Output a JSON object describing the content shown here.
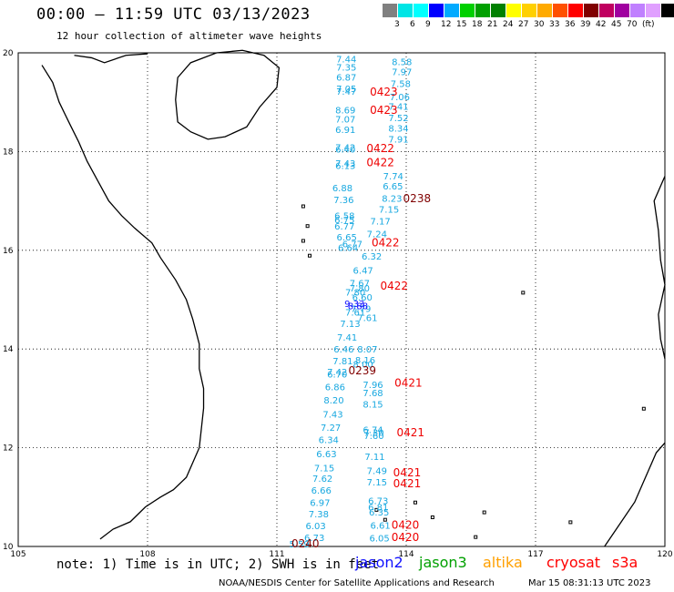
{
  "header": {
    "title": "00:00 – 11:59 UTC 03/13/2023",
    "subtitle": "12 hour collection of altimeter wave heights"
  },
  "colorbar": {
    "colors": [
      "#808080",
      "#00e5e5",
      "#00ffff",
      "#0000ff",
      "#00aaff",
      "#00d000",
      "#00a000",
      "#008000",
      "#ffff00",
      "#ffd000",
      "#ffaa00",
      "#ff5000",
      "#ff0000",
      "#800000",
      "#c00060",
      "#a000a0",
      "#c080ff",
      "#e0a0ff",
      "#000000"
    ],
    "labels": [
      "3",
      "6",
      "9",
      "12",
      "15",
      "18",
      "21",
      "24",
      "27",
      "30",
      "33",
      "36",
      "39",
      "42",
      "45",
      "70",
      "(ft)"
    ]
  },
  "map": {
    "lon_ticks": [
      "105",
      "108",
      "111",
      "114",
      "117",
      "120"
    ],
    "lat_ticks": [
      "20",
      "18",
      "16",
      "14",
      "12",
      "10"
    ]
  },
  "chart_data": {
    "type": "scatter",
    "lon_range": [
      105,
      120
    ],
    "lat_range": [
      10,
      20
    ],
    "units": "ft",
    "cyan_values": [
      {
        "v": "7.44",
        "lon": 112.61,
        "lat": 19.81
      },
      {
        "v": "8.58",
        "lon": 113.9,
        "lat": 19.75
      },
      {
        "v": "7.35",
        "lon": 112.61,
        "lat": 19.64
      },
      {
        "v": "7.97",
        "lon": 113.9,
        "lat": 19.55
      },
      {
        "v": "6.87",
        "lon": 112.61,
        "lat": 19.44
      },
      {
        "v": "7.58",
        "lon": 113.87,
        "lat": 19.31
      },
      {
        "v": "7.05",
        "lon": 112.61,
        "lat": 19.21
      },
      {
        "v": "7.47",
        "lon": 112.61,
        "lat": 19.15
      },
      {
        "v": "7.06",
        "lon": 113.85,
        "lat": 19.04
      },
      {
        "v": "7.41",
        "lon": 113.82,
        "lat": 18.85
      },
      {
        "v": "8.69",
        "lon": 112.59,
        "lat": 18.77
      },
      {
        "v": "7.52",
        "lon": 113.82,
        "lat": 18.62
      },
      {
        "v": "7.07",
        "lon": 112.59,
        "lat": 18.59
      },
      {
        "v": "8.34",
        "lon": 113.82,
        "lat": 18.4
      },
      {
        "v": "6.91",
        "lon": 112.59,
        "lat": 18.38
      },
      {
        "v": "7.91",
        "lon": 113.82,
        "lat": 18.18
      },
      {
        "v": "7.42",
        "lon": 112.59,
        "lat": 18.02
      },
      {
        "v": "6.40",
        "lon": 112.59,
        "lat": 17.98
      },
      {
        "v": "7.43",
        "lon": 112.59,
        "lat": 17.69
      },
      {
        "v": "6.13",
        "lon": 112.59,
        "lat": 17.65
      },
      {
        "v": "7.74",
        "lon": 113.7,
        "lat": 17.44
      },
      {
        "v": "6.88",
        "lon": 112.52,
        "lat": 17.2
      },
      {
        "v": "6.65",
        "lon": 113.69,
        "lat": 17.23
      },
      {
        "v": "7.36",
        "lon": 112.55,
        "lat": 16.96
      },
      {
        "v": "8.23",
        "lon": 113.67,
        "lat": 16.98
      },
      {
        "v": "7.15",
        "lon": 113.6,
        "lat": 16.76
      },
      {
        "v": "6.58",
        "lon": 112.57,
        "lat": 16.63
      },
      {
        "v": "6.75",
        "lon": 112.57,
        "lat": 16.55
      },
      {
        "v": "7.17",
        "lon": 113.4,
        "lat": 16.52
      },
      {
        "v": "6.77",
        "lon": 112.57,
        "lat": 16.42
      },
      {
        "v": "7.24",
        "lon": 113.32,
        "lat": 16.26
      },
      {
        "v": "6.65",
        "lon": 112.62,
        "lat": 16.2
      },
      {
        "v": "6.77",
        "lon": 112.75,
        "lat": 16.06
      },
      {
        "v": "6.64",
        "lon": 112.65,
        "lat": 15.99
      },
      {
        "v": "6.32",
        "lon": 113.2,
        "lat": 15.81
      },
      {
        "v": "6.47",
        "lon": 113.0,
        "lat": 15.53
      },
      {
        "v": "7.67",
        "lon": 112.92,
        "lat": 15.27
      },
      {
        "v": "7.80",
        "lon": 112.92,
        "lat": 15.17
      },
      {
        "v": "7.80",
        "lon": 112.82,
        "lat": 15.08
      },
      {
        "v": "6.60",
        "lon": 112.98,
        "lat": 14.98
      },
      {
        "v": "7.79",
        "lon": 112.95,
        "lat": 14.75
      },
      {
        "v": "7.61",
        "lon": 112.82,
        "lat": 14.68
      },
      {
        "v": "7.61",
        "lon": 113.1,
        "lat": 14.57
      },
      {
        "v": "7.13",
        "lon": 112.7,
        "lat": 14.45
      },
      {
        "v": "7.41",
        "lon": 112.63,
        "lat": 14.17
      },
      {
        "v": "6.46",
        "lon": 112.55,
        "lat": 13.93
      },
      {
        "v": "8.07",
        "lon": 113.1,
        "lat": 13.93
      },
      {
        "v": "7.81",
        "lon": 112.53,
        "lat": 13.69
      },
      {
        "v": "8.16",
        "lon": 113.05,
        "lat": 13.71
      },
      {
        "v": "8.00",
        "lon": 113.0,
        "lat": 13.63
      },
      {
        "v": "7.42",
        "lon": 112.4,
        "lat": 13.47
      },
      {
        "v": "6.70",
        "lon": 112.4,
        "lat": 13.42
      },
      {
        "v": "7.96",
        "lon": 113.23,
        "lat": 13.21
      },
      {
        "v": "6.86",
        "lon": 112.35,
        "lat": 13.16
      },
      {
        "v": "7.68",
        "lon": 113.23,
        "lat": 13.04
      },
      {
        "v": "8.20",
        "lon": 112.32,
        "lat": 12.9
      },
      {
        "v": "8.15",
        "lon": 113.23,
        "lat": 12.81
      },
      {
        "v": "7.43",
        "lon": 112.3,
        "lat": 12.61
      },
      {
        "v": "7.27",
        "lon": 112.25,
        "lat": 12.34
      },
      {
        "v": "6.74",
        "lon": 113.23,
        "lat": 12.3
      },
      {
        "v": "7.30",
        "lon": 113.25,
        "lat": 12.24
      },
      {
        "v": "7.60",
        "lon": 113.25,
        "lat": 12.18
      },
      {
        "v": "6.34",
        "lon": 112.2,
        "lat": 12.09
      },
      {
        "v": "6.63",
        "lon": 112.15,
        "lat": 11.81
      },
      {
        "v": "7.11",
        "lon": 113.27,
        "lat": 11.75
      },
      {
        "v": "7.15",
        "lon": 112.1,
        "lat": 11.52
      },
      {
        "v": "7.49",
        "lon": 113.32,
        "lat": 11.47
      },
      {
        "v": "7.62",
        "lon": 112.06,
        "lat": 11.31
      },
      {
        "v": "7.15",
        "lon": 113.32,
        "lat": 11.24
      },
      {
        "v": "6.66",
        "lon": 112.03,
        "lat": 11.07
      },
      {
        "v": "6.97",
        "lon": 112.0,
        "lat": 10.82
      },
      {
        "v": "6.73",
        "lon": 113.35,
        "lat": 10.86
      },
      {
        "v": "6.81",
        "lon": 113.35,
        "lat": 10.73
      },
      {
        "v": "6.35",
        "lon": 113.37,
        "lat": 10.63
      },
      {
        "v": "7.38",
        "lon": 111.97,
        "lat": 10.59
      },
      {
        "v": "6.03",
        "lon": 111.9,
        "lat": 10.35
      },
      {
        "v": "6.61",
        "lon": 113.4,
        "lat": 10.36
      },
      {
        "v": "6.73",
        "lon": 111.87,
        "lat": 10.11
      },
      {
        "v": "6.05",
        "lon": 113.38,
        "lat": 10.1
      }
    ],
    "blue_values": [
      {
        "v": "9.33",
        "lon": 112.8,
        "lat": 14.85
      },
      {
        "v": "8.88",
        "lon": 112.88,
        "lat": 14.81
      }
    ],
    "red_times": [
      {
        "v": "0423",
        "lon": 113.48,
        "lat": 19.13
      },
      {
        "v": "0423",
        "lon": 113.48,
        "lat": 18.76
      },
      {
        "v": "0422",
        "lon": 113.4,
        "lat": 17.99
      },
      {
        "v": "0422",
        "lon": 113.4,
        "lat": 17.7
      },
      {
        "v": "0422",
        "lon": 113.52,
        "lat": 16.08
      },
      {
        "v": "0422",
        "lon": 113.72,
        "lat": 15.2
      },
      {
        "v": "0421",
        "lon": 114.05,
        "lat": 13.24
      },
      {
        "v": "0421",
        "lon": 114.1,
        "lat": 12.23
      },
      {
        "v": "0421",
        "lon": 114.02,
        "lat": 11.42
      },
      {
        "v": "0421",
        "lon": 114.02,
        "lat": 11.2
      },
      {
        "v": "0420",
        "lon": 113.98,
        "lat": 10.36
      },
      {
        "v": "0420",
        "lon": 113.98,
        "lat": 10.11
      }
    ],
    "darkred_times": [
      {
        "v": "0238",
        "lon": 114.25,
        "lat": 16.97
      },
      {
        "v": "0239",
        "lon": 112.98,
        "lat": 13.49
      },
      {
        "v": "0240",
        "lon": 111.66,
        "lat": 9.98
      }
    ],
    "extra_cyan": [
      {
        "v": "5.59",
        "lon": 111.52,
        "lat": 9.98
      }
    ]
  },
  "note": "note: 1) Time is in UTC; 2) SWH is in feet",
  "satellites": [
    {
      "name": "jason2",
      "color": "#1010ff"
    },
    {
      "name": "jason3",
      "color": "#00a000"
    },
    {
      "name": "altika",
      "color": "#ffa000"
    },
    {
      "name": "cryosat",
      "color": "#ff0000"
    },
    {
      "name": "s3a",
      "color": "#ff0000"
    }
  ],
  "footer": {
    "credit": "NOAA/NESDIS Center for Satellite Applications and Research",
    "timestamp": "Mar 15 08:31:13 UTC 2023"
  }
}
